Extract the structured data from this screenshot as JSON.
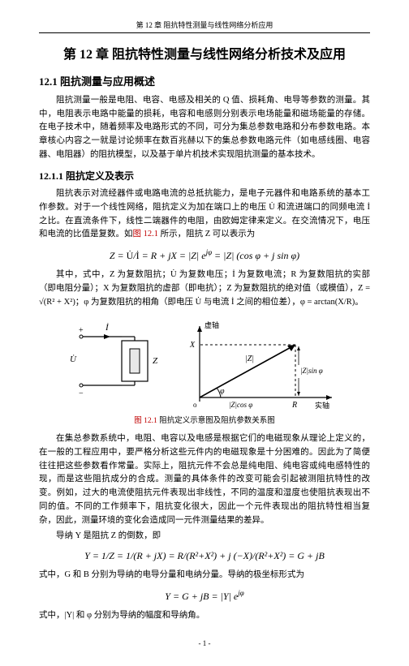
{
  "running_head": "第 12 章 阻抗特性测量与线性网络分析应用",
  "chapter_title": "第 12 章 阻抗特性测量与线性网络分析技术及应用",
  "section_12_1": "12.1 阻抗测量与应用概述",
  "para_1": "阻抗测量一般是电阻、电容、电感及相关的 Q 值、损耗角、电导等参数的测量。其中，电阻表示电路中能量的损耗，电容和电感则分别表示电场能量和磁场能量的存储。在电子技术中，随着频率及电路形式的不同，可分为集总参数电路和分布参数电路。本章核心内容之一就是讨论频率在数百兆赫以下的集总参数电路元件（如电感线圈、电容器、电阻器）的阻抗模型，以及基于单片机技术实现阻抗测量的基本技术。",
  "subsection_12_1_1": "12.1.1 阻抗定义及表示",
  "para_2": "阻抗表示对流经器件或电路电流的总抵抗能力，是电子元器件和电路系统的基本工作参数。对于一个线性网络，阻抗定义为加在端口上的电压 U̇ 和流进端口的同频电流 İ 之比。在直流条件下，线性二端器件的电阻，由欧姆定律来定义。在交流情况下，电压和电流的比值是复数。",
  "para_2_tail_pre": "如",
  "para_2_tail_link": "图 12.1",
  "para_2_tail_post": " 所示，阻抗 Z 可以表示为",
  "formula_1_html": "Z = <span class='up'>U̇</span>/<span class='up'>İ</span> = R + jX = |Z| e<sup>jφ</sup> = |Z| (cos φ + j sin φ)",
  "para_3": "其中，式中，Z 为复数阻抗；U̇ 为复数电压；İ 为复数电流；R 为复数阻抗的实部（即电阻分量）；X 为复数阻抗的虚部（即电抗）；Z 为复数阻抗的绝对值（或模值），Z = √(R² + X²)；φ 为复数阻抗的相角（即电压 U̇ 与电流 İ 之间的相位差），φ = arctan(X/R)。",
  "figure": {
    "circuit": {
      "labels": {
        "U": "U̇",
        "I": "İ",
        "Z": "Z",
        "plus": "+",
        "minus": "−"
      },
      "stroke": "#000000",
      "bg": "#ffffff"
    },
    "phasor": {
      "labels": {
        "x_axis": "实轴",
        "y_axis": "虚轴",
        "R": "R",
        "X": "X",
        "Z": "|Z|",
        "cos": "|Z|cos φ",
        "sin": "|Z|sin φ",
        "phi": "φ"
      },
      "stroke": "#000000"
    }
  },
  "figcap_pre": "图 12.1",
  "figcap_post": " 阻抗定义示意图及阻抗参数关系图",
  "para_4": "在集总参数系统中，电阻、电容以及电感是根据它们的电磁现象从理论上定义的，在一般的工程应用中，要严格分析这些元件内的电磁现象是十分困难的。因此为了简便往往把这些参数看作常量。实际上，阻抗元件不会总是纯电阻、纯电容或纯电感特性的现，而是这些阻抗成分的合成。测量的具体条件的改变可能会引起被测阻抗特性的改变。例如，过大的电流使阻抗元件表现出非线性，不同的温度和湿度也使阻抗表现出不同的值。不同的工作频率下，阻抗变化很大，因此一个元件表现出的阻抗特性相当复杂，因此，测量环境的变化会造成同一元件测量结果的差异。",
  "para_5": "导纳 Y 是阻抗 Z 的倒数，即",
  "formula_2_html": "Y = 1/Z = 1/(R + jX) = R/(R²+X²) + j (−X)/(R²+X²) = G + jB",
  "para_6": "式中，G 和 B 分别为导纳的电导分量和电纳分量。导纳的极坐标形式为",
  "formula_3_html": "Y = G + jB = |Y| e<sup>jφ</sup>",
  "para_7": "式中，|Y| 和 φ 分别为导纳的幅度和导纳角。",
  "page_number": "- 1 -",
  "colors": {
    "text": "#000000",
    "link_red": "#c00000",
    "background": "#ffffff"
  },
  "typography": {
    "body_font": "SimSun / 宋体",
    "body_size_pt": 10.5,
    "h1_size_pt": 16,
    "h2_size_pt": 13,
    "h3_size_pt": 12
  }
}
